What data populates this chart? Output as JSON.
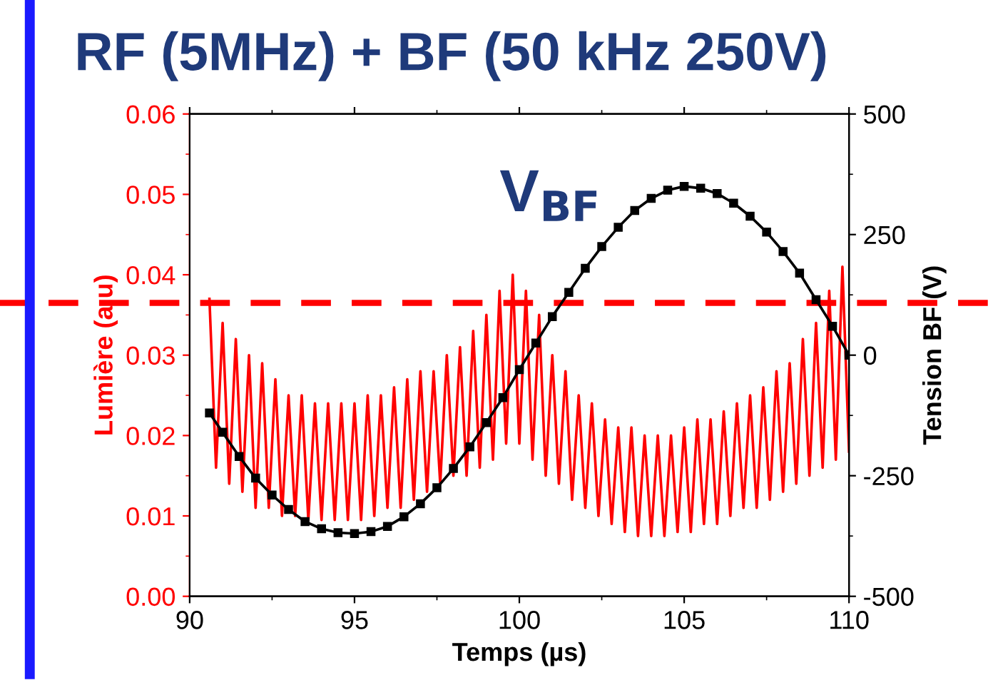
{
  "chart_data": {
    "type": "line",
    "title": "RF (5MHz) + BF (50 kHz 250V)",
    "xlabel": "Temps (µs)",
    "ylabel": "Lumière (a.u)",
    "y2label": "Tension BF (V)",
    "xlim": [
      90,
      110
    ],
    "xticks": [
      90,
      95,
      100,
      105,
      110
    ],
    "ylim": [
      0,
      0.06
    ],
    "yticks": [
      {
        "value": 0,
        "label": "0.00"
      },
      {
        "value": 0.01,
        "label": "0.01"
      },
      {
        "value": 0.02,
        "label": "0.02"
      },
      {
        "value": 0.03,
        "label": "0.03"
      },
      {
        "value": 0.04,
        "label": "0.04"
      },
      {
        "value": 0.05,
        "label": "0.05"
      },
      {
        "value": 0.06,
        "label": "0.06"
      }
    ],
    "y2lim": [
      -500,
      500
    ],
    "y2ticks": [
      -500,
      -250,
      0,
      250,
      500
    ],
    "ref_lines": [
      {
        "axis": "y",
        "value": 0.0365,
        "color": "#ff0000",
        "line_style": "dashed"
      }
    ],
    "series": [
      {
        "color": "#ff0000",
        "marker": "none",
        "x": [
          90.6,
          90.8,
          91.0,
          91.2,
          91.4,
          91.6,
          91.8,
          92.0,
          92.2,
          92.4,
          92.6,
          92.8,
          93.0,
          93.2,
          93.4,
          93.6,
          93.8,
          94.0,
          94.2,
          94.4,
          94.6,
          94.8,
          95.0,
          95.2,
          95.4,
          95.6,
          95.8,
          96.0,
          96.2,
          96.4,
          96.6,
          96.8,
          97.0,
          97.2,
          97.4,
          97.6,
          97.8,
          98.0,
          98.2,
          98.4,
          98.6,
          98.8,
          99.0,
          99.2,
          99.4,
          99.6,
          99.8,
          100.0,
          100.2,
          100.4,
          100.6,
          100.8,
          101.0,
          101.2,
          101.4,
          101.6,
          101.8,
          102.0,
          102.2,
          102.4,
          102.6,
          102.8,
          103.0,
          103.2,
          103.4,
          103.6,
          103.8,
          104.0,
          104.2,
          104.4,
          104.6,
          104.8,
          105.0,
          105.2,
          105.4,
          105.6,
          105.8,
          106.0,
          106.2,
          106.4,
          106.6,
          106.8,
          107.0,
          107.2,
          107.4,
          107.6,
          107.8,
          108.0,
          108.2,
          108.4,
          108.6,
          108.8,
          109.0,
          109.2,
          109.4,
          109.6,
          109.8,
          110.0
        ],
        "values": [
          0.037,
          0.016,
          0.034,
          0.014,
          0.032,
          0.013,
          0.03,
          0.011,
          0.029,
          0.011,
          0.027,
          0.01,
          0.025,
          0.01,
          0.025,
          0.0095,
          0.024,
          0.0095,
          0.024,
          0.0095,
          0.024,
          0.0095,
          0.024,
          0.0095,
          0.025,
          0.01,
          0.025,
          0.011,
          0.026,
          0.011,
          0.027,
          0.012,
          0.028,
          0.013,
          0.028,
          0.014,
          0.03,
          0.015,
          0.031,
          0.015,
          0.033,
          0.016,
          0.035,
          0.017,
          0.038,
          0.019,
          0.04,
          0.019,
          0.038,
          0.017,
          0.035,
          0.015,
          0.03,
          0.014,
          0.028,
          0.012,
          0.025,
          0.011,
          0.024,
          0.01,
          0.022,
          0.009,
          0.021,
          0.008,
          0.021,
          0.0075,
          0.02,
          0.0075,
          0.02,
          0.0075,
          0.02,
          0.008,
          0.021,
          0.008,
          0.022,
          0.009,
          0.022,
          0.009,
          0.023,
          0.01,
          0.024,
          0.011,
          0.025,
          0.011,
          0.026,
          0.012,
          0.028,
          0.013,
          0.029,
          0.014,
          0.032,
          0.015,
          0.034,
          0.016,
          0.038,
          0.017,
          0.041,
          0.018
        ]
      },
      {
        "name": "V$_{BF}$",
        "axis": "y2",
        "color": "#000000",
        "marker": "square",
        "x": [
          90.6,
          91,
          91.5,
          92,
          92.5,
          93,
          93.5,
          94,
          94.5,
          95,
          95.5,
          96,
          96.5,
          97,
          97.5,
          98,
          98.5,
          99,
          99.5,
          100,
          100.5,
          101,
          101.5,
          102,
          102.5,
          103,
          103.5,
          104,
          104.5,
          105,
          105.5,
          106,
          106.5,
          107,
          107.5,
          108,
          108.5,
          109,
          109.5,
          110
        ],
        "values": [
          -120,
          -160,
          -210,
          -255,
          -290,
          -320,
          -345,
          -360,
          -368,
          -370,
          -366,
          -355,
          -335,
          -308,
          -275,
          -235,
          -190,
          -140,
          -88,
          -30,
          25,
          80,
          130,
          180,
          225,
          265,
          300,
          325,
          342,
          350,
          346,
          335,
          315,
          288,
          255,
          215,
          170,
          115,
          60,
          0
        ]
      }
    ]
  }
}
